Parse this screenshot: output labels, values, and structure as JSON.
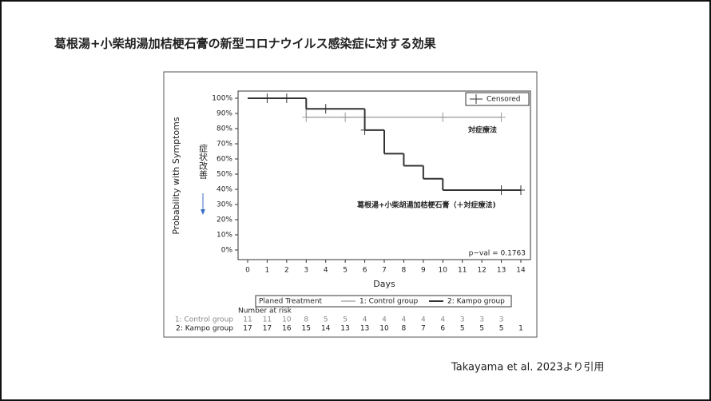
{
  "title": "葛根湯+小柴胡湯加桔梗石膏の新型コロナウイルス感染症に対する効果",
  "citation": "Takayama et al. 2023より引用",
  "chart_data": {
    "type": "step",
    "y_label": "Probability with Symptoms",
    "x_label": "Days",
    "annotation": "症状改善",
    "p_value": "p−val = 0.1763",
    "censor_legend": "Censored",
    "legend_title": "Planed Treatment",
    "xlim": [
      0,
      14
    ],
    "xticks": [
      0,
      1,
      2,
      3,
      4,
      5,
      6,
      7,
      8,
      9,
      10,
      11,
      12,
      13,
      14
    ],
    "ylim": [
      0,
      100
    ],
    "yticks": [
      {
        "value": 0,
        "label": "0%"
      },
      {
        "value": 10,
        "label": "10%"
      },
      {
        "value": 20,
        "label": "20%"
      },
      {
        "value": 30,
        "label": "30%"
      },
      {
        "value": 40,
        "label": "40%"
      },
      {
        "value": 50,
        "label": "50%"
      },
      {
        "value": 60,
        "label": "60%"
      },
      {
        "value": 70,
        "label": "70%"
      },
      {
        "value": 80,
        "label": "80%"
      },
      {
        "value": 90,
        "label": "90%"
      },
      {
        "value": 100,
        "label": "100%"
      }
    ],
    "series": [
      {
        "name": "1: Control group",
        "label": "対症療法",
        "color": "#9a9a9a",
        "x": [
          0,
          3,
          13
        ],
        "values": [
          100,
          87.5,
          87.5
        ],
        "censor_x": [
          3,
          5,
          10,
          13
        ],
        "censor_values": [
          87.5,
          87.5,
          87.5,
          87.5
        ]
      },
      {
        "name": "2: Kampo group",
        "label": "葛根湯+小柴胡湯加桔梗石膏（＋対症療法)",
        "color": "#333333",
        "x": [
          0,
          3,
          6,
          7,
          8,
          9,
          10,
          14
        ],
        "values": [
          100,
          93,
          79,
          63.5,
          55.5,
          47,
          39.5,
          39.5
        ],
        "censor_x": [
          1,
          2,
          4,
          6,
          13,
          14
        ],
        "censor_values": [
          100,
          100,
          93,
          79,
          39.5,
          39.5
        ]
      }
    ],
    "risk_table": {
      "title": "Number at risk",
      "rows": [
        {
          "name": "1: Control group",
          "values": [
            11,
            11,
            10,
            8,
            5,
            5,
            4,
            4,
            4,
            4,
            4,
            3,
            3,
            3
          ]
        },
        {
          "name": "2: Kampo group",
          "values": [
            17,
            17,
            16,
            15,
            14,
            13,
            13,
            10,
            8,
            7,
            6,
            5,
            5,
            5,
            1
          ]
        }
      ]
    }
  }
}
